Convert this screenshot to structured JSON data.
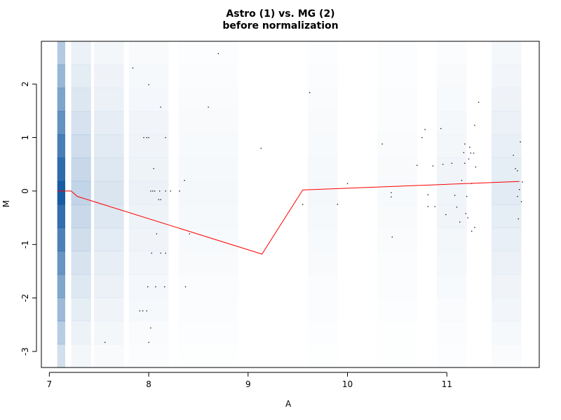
{
  "chart_data": {
    "type": "scatter",
    "title": "Astro (1) vs. MG (2)",
    "subtitle": "before normalization",
    "xlabel": "A",
    "ylabel": "M",
    "xlim": [
      6.92,
      11.93
    ],
    "ylim": [
      -3.3,
      2.8
    ],
    "xticks": [
      7,
      8,
      9,
      10,
      11
    ],
    "yticks": [
      -3,
      -2,
      -1,
      0,
      1,
      2
    ],
    "density_color": "#08519c",
    "loess_color": "#ff0000",
    "density_columns": [
      {
        "x": 7.08,
        "width": 0.08,
        "strength": 0.95
      },
      {
        "x": 7.22,
        "width": 0.2,
        "strength": 0.25
      },
      {
        "x": 7.45,
        "width": 0.3,
        "strength": 0.15
      },
      {
        "x": 7.8,
        "width": 0.4,
        "strength": 0.08
      },
      {
        "x": 8.3,
        "width": 0.6,
        "strength": 0.04
      },
      {
        "x": 9.6,
        "width": 0.3,
        "strength": 0.04
      },
      {
        "x": 10.3,
        "width": 0.4,
        "strength": 0.03
      },
      {
        "x": 10.9,
        "width": 0.3,
        "strength": 0.06
      },
      {
        "x": 11.45,
        "width": 0.3,
        "strength": 0.12
      }
    ],
    "loess": [
      {
        "x": 7.08,
        "y": 0.0
      },
      {
        "x": 7.22,
        "y": 0.0
      },
      {
        "x": 7.28,
        "y": -0.1
      },
      {
        "x": 9.14,
        "y": -1.18
      },
      {
        "x": 9.55,
        "y": 0.02
      },
      {
        "x": 11.73,
        "y": 0.18
      }
    ],
    "points": [
      [
        7.56,
        -2.83
      ],
      [
        7.84,
        2.3
      ],
      [
        8.0,
        1.99
      ],
      [
        8.12,
        1.57
      ],
      [
        7.95,
        1.0
      ],
      [
        7.98,
        1.0
      ],
      [
        8.0,
        1.0
      ],
      [
        8.17,
        1.0
      ],
      [
        8.05,
        0.42
      ],
      [
        8.02,
        0.0
      ],
      [
        8.04,
        0.0
      ],
      [
        8.06,
        0.0
      ],
      [
        8.11,
        0.0
      ],
      [
        8.17,
        0.0
      ],
      [
        8.22,
        0.0
      ],
      [
        8.31,
        0.0
      ],
      [
        8.1,
        -0.16
      ],
      [
        8.12,
        -0.16
      ],
      [
        8.36,
        0.2
      ],
      [
        8.08,
        -0.8
      ],
      [
        8.03,
        -1.16
      ],
      [
        8.12,
        -1.16
      ],
      [
        8.17,
        -1.16
      ],
      [
        8.41,
        -0.8
      ],
      [
        7.99,
        -1.79
      ],
      [
        8.07,
        -1.79
      ],
      [
        8.16,
        -1.79
      ],
      [
        8.37,
        -1.79
      ],
      [
        7.91,
        -2.24
      ],
      [
        7.94,
        -2.24
      ],
      [
        7.98,
        -2.24
      ],
      [
        8.02,
        -2.56
      ],
      [
        8.0,
        -2.83
      ],
      [
        8.7,
        2.57
      ],
      [
        8.6,
        1.57
      ],
      [
        9.13,
        0.8
      ],
      [
        9.62,
        1.84
      ],
      [
        9.55,
        -0.25
      ],
      [
        9.9,
        -0.25
      ],
      [
        10.0,
        0.14
      ],
      [
        10.35,
        0.88
      ],
      [
        10.44,
        -0.03
      ],
      [
        10.44,
        -0.11
      ],
      [
        10.45,
        -0.86
      ],
      [
        10.7,
        0.48
      ],
      [
        10.75,
        1.0
      ],
      [
        10.78,
        1.15
      ],
      [
        10.81,
        -0.07
      ],
      [
        10.81,
        -0.29
      ],
      [
        10.86,
        0.47
      ],
      [
        10.88,
        -0.29
      ],
      [
        10.94,
        1.17
      ],
      [
        10.96,
        0.5
      ],
      [
        10.99,
        -0.44
      ],
      [
        11.05,
        0.52
      ],
      [
        11.08,
        -0.08
      ],
      [
        11.1,
        -0.3
      ],
      [
        11.13,
        -0.58
      ],
      [
        11.15,
        0.2
      ],
      [
        11.17,
        0.72
      ],
      [
        11.18,
        0.88
      ],
      [
        11.18,
        0.52
      ],
      [
        11.19,
        -0.42
      ],
      [
        11.2,
        -0.1
      ],
      [
        11.21,
        -0.5
      ],
      [
        11.22,
        0.6
      ],
      [
        11.23,
        0.82
      ],
      [
        11.24,
        0.71
      ],
      [
        11.25,
        0.14
      ],
      [
        11.25,
        -0.75
      ],
      [
        11.27,
        0.71
      ],
      [
        11.28,
        1.23
      ],
      [
        11.28,
        -0.68
      ],
      [
        11.29,
        0.45
      ],
      [
        11.32,
        1.66
      ],
      [
        11.67,
        0.67
      ],
      [
        11.69,
        0.42
      ],
      [
        11.71,
        0.38
      ],
      [
        11.71,
        -0.1
      ],
      [
        11.72,
        -0.52
      ],
      [
        11.73,
        0.03
      ],
      [
        11.74,
        0.92
      ],
      [
        11.75,
        -0.2
      ],
      [
        11.76,
        0.17
      ]
    ]
  }
}
